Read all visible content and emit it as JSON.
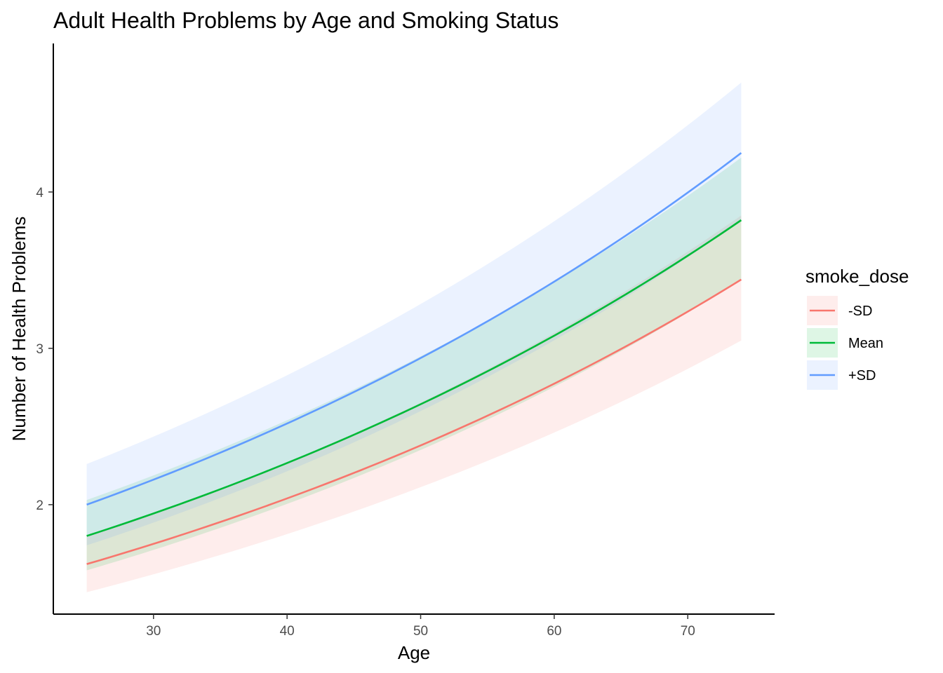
{
  "chart_data": {
    "type": "line",
    "title": "Adult Health Problems by Age and Smoking Status",
    "xlabel": "Age",
    "ylabel": "Number of Health Problems",
    "xlim": [
      22.5,
      76.5
    ],
    "ylim": [
      1.3,
      4.95
    ],
    "x_ticks": [
      30,
      40,
      50,
      60,
      70
    ],
    "y_ticks": [
      2,
      3,
      4
    ],
    "grid": false,
    "legend_title": "smoke_dose",
    "legend_position": "right",
    "series": [
      {
        "name": "-SD",
        "color": "#F8766D",
        "x": [
          25,
          74
        ],
        "y": [
          1.62,
          3.44
        ],
        "lower": [
          1.44,
          3.05
        ],
        "upper": [
          1.8,
          3.85
        ]
      },
      {
        "name": "Mean",
        "color": "#00BA38",
        "x": [
          25,
          74
        ],
        "y": [
          1.8,
          3.82
        ],
        "lower": [
          1.58,
          3.44
        ],
        "upper": [
          2.03,
          4.22
        ]
      },
      {
        "name": "+SD",
        "color": "#619CFF",
        "x": [
          25,
          74
        ],
        "y": [
          2.0,
          4.25
        ],
        "lower": [
          1.74,
          3.82
        ],
        "upper": [
          2.26,
          4.7
        ]
      }
    ]
  }
}
